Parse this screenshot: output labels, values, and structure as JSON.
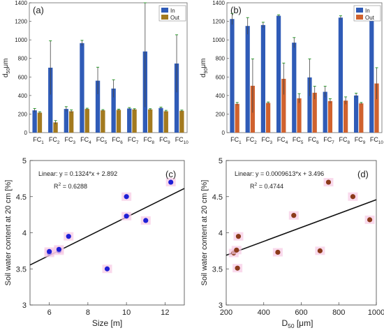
{
  "chart_data": [
    {
      "type": "bar",
      "panel_label": "(a)",
      "ylabel_main": "d",
      "ylabel_sub": "50",
      "ylabel_unit": "μm",
      "ylim": [
        0,
        1400
      ],
      "yticks": [
        0,
        200,
        400,
        600,
        800,
        1000,
        1200,
        1400
      ],
      "categories": [
        "FC1",
        "FC2",
        "FC3",
        "FC4",
        "FC5",
        "FC6",
        "FC7",
        "FC8",
        "FC9",
        "FC10"
      ],
      "category_main": "FC",
      "category_subs": [
        "1",
        "2",
        "3",
        "4",
        "5",
        "6",
        "7",
        "8",
        "9",
        "10"
      ],
      "series": [
        {
          "name": "In",
          "color": "#2f5bb7",
          "values": [
            240,
            700,
            255,
            965,
            560,
            475,
            260,
            875,
            265,
            745
          ],
          "errors": [
            20,
            290,
            25,
            30,
            145,
            95,
            10,
            600,
            10,
            310
          ]
        },
        {
          "name": "Out",
          "color": "#a37a1f",
          "values": [
            215,
            110,
            230,
            255,
            240,
            245,
            250,
            250,
            230,
            235
          ],
          "errors": [
            10,
            20,
            15,
            8,
            8,
            8,
            8,
            8,
            10,
            8
          ]
        }
      ],
      "legend": "top-right",
      "grid": false
    },
    {
      "type": "bar",
      "panel_label": "(b)",
      "ylabel_main": "d",
      "ylabel_sub": "90",
      "ylabel_unit": "μm",
      "ylim": [
        0,
        1400
      ],
      "yticks": [
        0,
        200,
        400,
        600,
        800,
        1000,
        1200,
        1400
      ],
      "categories": [
        "FC1",
        "FC2",
        "FC3",
        "FC4",
        "FC5",
        "FC6",
        "FC7",
        "FC8",
        "FC9",
        "FC10"
      ],
      "category_main": "FC",
      "category_subs": [
        "1",
        "2",
        "3",
        "4",
        "5",
        "6",
        "7",
        "8",
        "9",
        "10"
      ],
      "series": [
        {
          "name": "In",
          "color": "#2f5bb7",
          "values": [
            1225,
            1150,
            1160,
            1260,
            970,
            595,
            440,
            1240,
            400,
            1295
          ],
          "errors": [
            60,
            90,
            30,
            10,
            55,
            200,
            60,
            20,
            25,
            70
          ]
        },
        {
          "name": "Out",
          "color": "#d0622e",
          "values": [
            310,
            505,
            320,
            580,
            370,
            430,
            340,
            345,
            315,
            530
          ],
          "errors": [
            15,
            290,
            10,
            170,
            50,
            70,
            25,
            40,
            10,
            170
          ]
        }
      ],
      "legend": "top-right",
      "grid": false
    },
    {
      "type": "scatter",
      "panel_label": "(c)",
      "xlabel": "Size [m]",
      "ylabel": "Soil water content at 20 cm [%]",
      "xlim": [
        5,
        13
      ],
      "ylim": [
        3,
        5
      ],
      "xticks": [
        6,
        8,
        10,
        12
      ],
      "yticks": [
        3,
        3.5,
        4,
        4.5,
        5
      ],
      "points": [
        [
          6.0,
          3.72
        ],
        [
          6.0,
          3.74
        ],
        [
          6.5,
          3.75
        ],
        [
          6.5,
          3.77
        ],
        [
          7.0,
          3.95
        ],
        [
          9.0,
          3.5
        ],
        [
          10.0,
          4.23
        ],
        [
          10.0,
          4.5
        ],
        [
          11.0,
          4.17
        ],
        [
          12.3,
          4.7
        ]
      ],
      "point_color": "#1f1fd6",
      "fit": {
        "slope": 0.1324,
        "intercept": 2.892
      },
      "annotation_line1": "Linear:  y = 0.1324*x + 2.892",
      "annotation_line2": "R",
      "annotation_r2_exp": "2",
      "annotation_r2_value": " = 0.6288",
      "grid": false
    },
    {
      "type": "scatter",
      "panel_label": "(d)",
      "xlabel_main": "D",
      "xlabel_sub": "50",
      "xlabel_unit": " [μm]",
      "ylabel": "Soil water content at 20 cm [%]",
      "xlim": [
        200,
        1000
      ],
      "ylim": [
        3,
        5
      ],
      "xticks": [
        200,
        400,
        600,
        800,
        1000
      ],
      "yticks": [
        3,
        3.5,
        4,
        4.5,
        5
      ],
      "points": [
        [
          240,
          3.72
        ],
        [
          255,
          3.76
        ],
        [
          260,
          3.51
        ],
        [
          265,
          3.95
        ],
        [
          475,
          3.73
        ],
        [
          560,
          4.24
        ],
        [
          700,
          3.75
        ],
        [
          745,
          4.7
        ],
        [
          875,
          4.5
        ],
        [
          965,
          4.18
        ]
      ],
      "point_color": "#8b3a1a",
      "fit": {
        "slope": 0.0009613,
        "intercept": 3.496
      },
      "annotation_line1": "Linear:  y = 0.0009613*x + 3.496",
      "annotation_line2": "R",
      "annotation_r2_exp": "2",
      "annotation_r2_value": " = 0.4744",
      "grid": false
    }
  ]
}
